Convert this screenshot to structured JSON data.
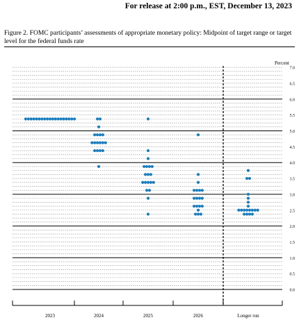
{
  "release_line": "For release at 2:00 p.m., EST, December 13, 2023",
  "figure_title": "Figure 2.  FOMC participants’ assessments of appropriate monetary policy: Midpoint of target range or target level for the federal funds rate",
  "chart_data": {
    "type": "scatter",
    "style": "dot plot",
    "ylabel": "Percent",
    "ylim": [
      0,
      7
    ],
    "y_ticks": [
      "0.0",
      "0.5",
      "1.0",
      "1.5",
      "2.0",
      "2.5",
      "3.0",
      "3.5",
      "4.0",
      "4.5",
      "5.0",
      "5.5",
      "6.0",
      "6.5",
      "7.0"
    ],
    "categories": [
      "2023",
      "2024",
      "2025",
      "2026",
      "Longer run"
    ],
    "grid": "dotted every 0.125, solid every 1.0",
    "separator": "vertical dashed line before Longer run",
    "dot_color": "#1a7dbd",
    "dots": [
      {
        "category": "2023",
        "levels": [
          {
            "y": 5.375,
            "count": 19
          }
        ]
      },
      {
        "category": "2024",
        "levels": [
          {
            "y": 5.375,
            "count": 2
          },
          {
            "y": 5.125,
            "count": 1
          },
          {
            "y": 4.875,
            "count": 4
          },
          {
            "y": 4.625,
            "count": 6
          },
          {
            "y": 4.375,
            "count": 4
          },
          {
            "y": 3.875,
            "count": 1
          }
        ]
      },
      {
        "category": "2025",
        "levels": [
          {
            "y": 5.375,
            "count": 1
          },
          {
            "y": 4.375,
            "count": 1
          },
          {
            "y": 4.125,
            "count": 1
          },
          {
            "y": 3.875,
            "count": 4
          },
          {
            "y": 3.625,
            "count": 3
          },
          {
            "y": 3.375,
            "count": 5
          },
          {
            "y": 3.125,
            "count": 2
          },
          {
            "y": 2.875,
            "count": 1
          },
          {
            "y": 2.375,
            "count": 1
          }
        ]
      },
      {
        "category": "2026",
        "levels": [
          {
            "y": 4.875,
            "count": 1
          },
          {
            "y": 3.625,
            "count": 1
          },
          {
            "y": 3.375,
            "count": 1
          },
          {
            "y": 3.125,
            "count": 4
          },
          {
            "y": 2.875,
            "count": 4
          },
          {
            "y": 2.625,
            "count": 4
          },
          {
            "y": 2.5,
            "count": 1
          },
          {
            "y": 2.375,
            "count": 3
          }
        ]
      },
      {
        "category": "Longer run",
        "levels": [
          {
            "y": 3.75,
            "count": 1
          },
          {
            "y": 3.5,
            "count": 2
          },
          {
            "y": 3.0,
            "count": 1
          },
          {
            "y": 2.875,
            "count": 1
          },
          {
            "y": 2.75,
            "count": 1
          },
          {
            "y": 2.625,
            "count": 1
          },
          {
            "y": 2.5,
            "count": 8
          },
          {
            "y": 2.375,
            "count": 4
          }
        ]
      }
    ]
  }
}
